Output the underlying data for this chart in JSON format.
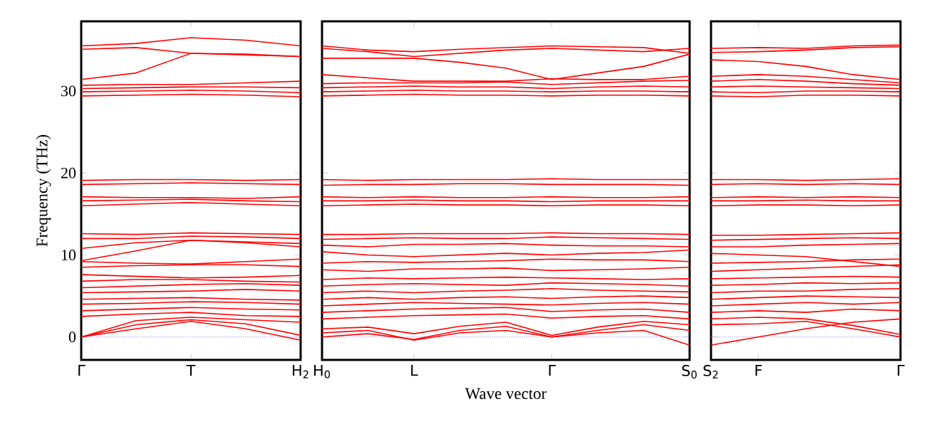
{
  "chart_data": [
    {
      "type": "line",
      "ylabel": "Frequency (THz)",
      "ylim": [
        -2.8,
        38.5
      ],
      "yticks": [
        0,
        10,
        20,
        30
      ],
      "categories": [
        "Γ",
        null,
        "T",
        null,
        "H$_{2}$"
      ],
      "ref_lines": [
        {
          "axis": "y",
          "value": 0,
          "color": "#7777ff",
          "line_style": "dotted"
        }
      ],
      "series": [
        {
          "color": "#ff0000",
          "values": [
            0,
            1.0,
            1.9,
            1.0,
            -0.4
          ]
        },
        {
          "color": "#ff0000",
          "values": [
            0,
            1.5,
            2.1,
            1.6,
            0.2
          ]
        },
        {
          "color": "#ff0000",
          "values": [
            0,
            2.0,
            2.4,
            2.1,
            1.8
          ]
        },
        {
          "color": "#ff0000",
          "values": [
            2.5,
            2.8,
            3.0,
            2.6,
            2.5
          ]
        },
        {
          "color": "#ff0000",
          "values": [
            3.2,
            3.4,
            3.6,
            3.4,
            3.3
          ]
        },
        {
          "color": "#ff0000",
          "values": [
            4.0,
            4.1,
            4.3,
            4.2,
            4.0
          ]
        },
        {
          "color": "#ff0000",
          "values": [
            4.6,
            4.7,
            4.8,
            4.6,
            4.5
          ]
        },
        {
          "color": "#ff0000",
          "values": [
            5.4,
            5.5,
            5.6,
            5.8,
            5.6
          ]
        },
        {
          "color": "#ff0000",
          "values": [
            6.0,
            6.2,
            6.4,
            6.5,
            6.3
          ]
        },
        {
          "color": "#ff0000",
          "values": [
            6.8,
            7.0,
            7.0,
            6.8,
            6.7
          ]
        },
        {
          "color": "#ff0000",
          "values": [
            7.6,
            7.4,
            7.2,
            7.3,
            7.5
          ]
        },
        {
          "color": "#ff0000",
          "values": [
            8.5,
            8.7,
            8.8,
            8.8,
            8.6
          ]
        },
        {
          "color": "#ff0000",
          "values": [
            9.2,
            9.0,
            8.9,
            9.2,
            9.5
          ]
        },
        {
          "color": "#ff0000",
          "values": [
            9.3,
            10.5,
            11.8,
            11.5,
            11.0
          ]
        },
        {
          "color": "#ff0000",
          "values": [
            10.8,
            11.5,
            11.8,
            11.6,
            11.4
          ]
        },
        {
          "color": "#ff0000",
          "values": [
            12.0,
            12.0,
            12.3,
            12.2,
            12.0
          ]
        },
        {
          "color": "#ff0000",
          "values": [
            12.6,
            12.5,
            12.7,
            12.6,
            12.5
          ]
        },
        {
          "color": "#ff0000",
          "values": [
            16.0,
            16.2,
            16.4,
            16.2,
            16.0
          ]
        },
        {
          "color": "#ff0000",
          "values": [
            16.6,
            16.7,
            16.8,
            16.6,
            16.5
          ]
        },
        {
          "color": "#ff0000",
          "values": [
            17.1,
            17.0,
            17.0,
            16.9,
            17.1
          ]
        },
        {
          "color": "#ff0000",
          "values": [
            18.6,
            18.7,
            18.8,
            18.7,
            18.6
          ]
        },
        {
          "color": "#ff0000",
          "values": [
            19.1,
            19.2,
            19.2,
            19.1,
            19.2
          ]
        },
        {
          "color": "#ff0000",
          "values": [
            29.4,
            29.5,
            29.6,
            29.5,
            29.3
          ]
        },
        {
          "color": "#ff0000",
          "values": [
            29.9,
            30.0,
            30.1,
            30.0,
            29.8
          ]
        },
        {
          "color": "#ff0000",
          "values": [
            30.3,
            30.4,
            30.5,
            30.5,
            30.4
          ]
        },
        {
          "color": "#ff0000",
          "values": [
            30.7,
            30.8,
            30.8,
            31.0,
            31.2
          ]
        },
        {
          "color": "#ff0000",
          "values": [
            31.4,
            32.2,
            34.6,
            34.5,
            34.2
          ]
        },
        {
          "color": "#ff0000",
          "values": [
            35.1,
            35.3,
            34.6,
            34.4,
            34.2
          ]
        },
        {
          "color": "#ff0000",
          "values": [
            35.5,
            35.8,
            36.5,
            36.2,
            35.5
          ]
        }
      ]
    },
    {
      "type": "line",
      "xlabel": "Wave vector",
      "ylim": [
        -2.8,
        38.5
      ],
      "yticks": [
        0,
        10,
        20,
        30
      ],
      "tick_labels": "x",
      "categories": [
        "H$_{0}$",
        null,
        "L",
        null,
        null,
        "Γ",
        null,
        null,
        "S$_{0}$"
      ],
      "ref_lines": [
        {
          "axis": "y",
          "value": 0,
          "color": "#7777ff",
          "line_style": "dotted"
        }
      ],
      "series": [
        {
          "color": "#ff0000",
          "values": [
            0.5,
            0.8,
            -0.4,
            0.5,
            0.8,
            0,
            0.5,
            0.8,
            -1.0
          ]
        },
        {
          "color": "#ff0000",
          "values": [
            0.0,
            0.4,
            -0.3,
            0.8,
            1.3,
            0,
            0.8,
            1.5,
            0.8
          ]
        },
        {
          "color": "#ff0000",
          "values": [
            1.0,
            1.2,
            0.4,
            1.3,
            1.8,
            0.2,
            1.2,
            1.9,
            1.5
          ]
        },
        {
          "color": "#ff0000",
          "values": [
            2.2,
            2.4,
            2.6,
            2.7,
            2.8,
            2.3,
            2.5,
            2.6,
            2.2
          ]
        },
        {
          "color": "#ff0000",
          "values": [
            3.0,
            3.2,
            3.4,
            3.5,
            3.6,
            3.1,
            3.3,
            3.4,
            3.0
          ]
        },
        {
          "color": "#ff0000",
          "values": [
            3.8,
            4.0,
            4.2,
            4.1,
            4.0,
            3.9,
            4.1,
            4.2,
            4.0
          ]
        },
        {
          "color": "#ff0000",
          "values": [
            4.6,
            4.8,
            4.6,
            4.8,
            4.9,
            4.7,
            4.9,
            5.0,
            4.8
          ]
        },
        {
          "color": "#ff0000",
          "values": [
            5.4,
            5.6,
            5.4,
            5.6,
            5.7,
            5.9,
            5.7,
            5.6,
            5.5
          ]
        },
        {
          "color": "#ff0000",
          "values": [
            6.2,
            6.4,
            6.5,
            6.4,
            6.3,
            6.6,
            6.5,
            6.4,
            6.2
          ]
        },
        {
          "color": "#ff0000",
          "values": [
            7.0,
            7.2,
            7.1,
            7.2,
            7.3,
            7.2,
            7.1,
            7.0,
            7.1
          ]
        },
        {
          "color": "#ff0000",
          "values": [
            8.2,
            8.0,
            8.3,
            8.3,
            8.4,
            8.1,
            8.2,
            8.3,
            8.5
          ]
        },
        {
          "color": "#ff0000",
          "values": [
            9.0,
            9.2,
            9.1,
            9.2,
            9.3,
            9.5,
            9.4,
            9.4,
            9.2
          ]
        },
        {
          "color": "#ff0000",
          "values": [
            10.4,
            10.0,
            9.8,
            10.0,
            10.2,
            10.0,
            10.2,
            10.3,
            10.6
          ]
        },
        {
          "color": "#ff0000",
          "values": [
            11.2,
            11.0,
            11.3,
            11.3,
            11.4,
            11.2,
            11.1,
            11.1,
            11.0
          ]
        },
        {
          "color": "#ff0000",
          "values": [
            11.9,
            12.0,
            12.1,
            12.0,
            12.0,
            12.2,
            12.1,
            12.0,
            11.9
          ]
        },
        {
          "color": "#ff0000",
          "values": [
            12.5,
            12.5,
            12.6,
            12.6,
            12.6,
            12.7,
            12.6,
            12.6,
            12.5
          ]
        },
        {
          "color": "#ff0000",
          "values": [
            16.0,
            16.1,
            16.2,
            16.1,
            16.1,
            16.0,
            16.1,
            16.1,
            16.0
          ]
        },
        {
          "color": "#ff0000",
          "values": [
            16.6,
            16.6,
            16.7,
            16.6,
            16.6,
            16.5,
            16.6,
            16.6,
            16.6
          ]
        },
        {
          "color": "#ff0000",
          "values": [
            17.1,
            17.0,
            17.1,
            17.0,
            17.0,
            17.1,
            17.0,
            17.0,
            17.1
          ]
        },
        {
          "color": "#ff0000",
          "values": [
            18.5,
            18.6,
            18.6,
            18.7,
            18.7,
            18.6,
            18.6,
            18.6,
            18.5
          ]
        },
        {
          "color": "#ff0000",
          "values": [
            19.2,
            19.1,
            19.2,
            19.2,
            19.2,
            19.3,
            19.2,
            19.2,
            19.2
          ]
        },
        {
          "color": "#ff0000",
          "values": [
            29.4,
            29.5,
            29.6,
            29.5,
            29.5,
            29.4,
            29.5,
            29.5,
            29.4
          ]
        },
        {
          "color": "#ff0000",
          "values": [
            29.9,
            30.0,
            30.1,
            30.0,
            30.0,
            29.9,
            30.0,
            30.0,
            29.9
          ]
        },
        {
          "color": "#ff0000",
          "values": [
            30.4,
            30.5,
            30.6,
            30.5,
            30.5,
            30.3,
            30.5,
            30.6,
            30.5
          ]
        },
        {
          "color": "#ff0000",
          "values": [
            30.9,
            31.0,
            31.0,
            31.0,
            31.1,
            30.8,
            31.0,
            31.2,
            31.3
          ]
        },
        {
          "color": "#ff0000",
          "values": [
            32.0,
            31.6,
            31.2,
            31.2,
            31.2,
            31.5,
            31.4,
            31.4,
            31.8
          ]
        },
        {
          "color": "#ff0000",
          "values": [
            34.0,
            34.0,
            34.0,
            33.5,
            32.8,
            31.4,
            32.2,
            33.0,
            34.5
          ]
        },
        {
          "color": "#ff0000",
          "values": [
            35.5,
            35.0,
            34.8,
            35.1,
            35.3,
            35.5,
            35.4,
            35.3,
            34.6
          ]
        },
        {
          "color": "#ff0000",
          "values": [
            35.2,
            34.8,
            34.2,
            34.6,
            35.0,
            35.2,
            35.0,
            34.8,
            35.2
          ]
        }
      ]
    },
    {
      "type": "line",
      "ylim": [
        -2.8,
        38.5
      ],
      "yticks": [
        0,
        10,
        20,
        30
      ],
      "tick_labels": "x",
      "categories": [
        "S$_{2}$",
        "F",
        null,
        null,
        "Γ"
      ],
      "ref_lines": [
        {
          "axis": "y",
          "value": 0,
          "color": "#7777ff",
          "line_style": "dotted"
        }
      ],
      "series": [
        {
          "color": "#ff0000",
          "values": [
            -1.0,
            0,
            1.0,
            1.8,
            2.2
          ]
        },
        {
          "color": "#ff0000",
          "values": [
            1.5,
            1.6,
            1.9,
            1.0,
            0
          ]
        },
        {
          "color": "#ff0000",
          "values": [
            2.2,
            2.4,
            2.2,
            1.4,
            0.3
          ]
        },
        {
          "color": "#ff0000",
          "values": [
            3.0,
            3.2,
            3.0,
            3.4,
            3.2
          ]
        },
        {
          "color": "#ff0000",
          "values": [
            3.8,
            4.0,
            4.2,
            4.0,
            4.2
          ]
        },
        {
          "color": "#ff0000",
          "values": [
            4.6,
            4.8,
            5.0,
            4.9,
            4.8
          ]
        },
        {
          "color": "#ff0000",
          "values": [
            5.4,
            5.6,
            5.6,
            5.8,
            5.9
          ]
        },
        {
          "color": "#ff0000",
          "values": [
            6.3,
            6.4,
            6.6,
            6.5,
            6.6
          ]
        },
        {
          "color": "#ff0000",
          "values": [
            7.1,
            7.2,
            7.3,
            7.4,
            7.3
          ]
        },
        {
          "color": "#ff0000",
          "values": [
            8.0,
            8.2,
            8.4,
            8.6,
            8.8
          ]
        },
        {
          "color": "#ff0000",
          "values": [
            9.0,
            9.1,
            9.2,
            9.4,
            9.5
          ]
        },
        {
          "color": "#ff0000",
          "values": [
            10.2,
            10.0,
            9.8,
            9.2,
            8.6
          ]
        },
        {
          "color": "#ff0000",
          "values": [
            11.0,
            11.0,
            11.2,
            11.3,
            11.4
          ]
        },
        {
          "color": "#ff0000",
          "values": [
            11.8,
            11.9,
            12.0,
            12.1,
            12.0
          ]
        },
        {
          "color": "#ff0000",
          "values": [
            12.4,
            12.4,
            12.5,
            12.6,
            12.7
          ]
        },
        {
          "color": "#ff0000",
          "values": [
            16.0,
            16.1,
            16.1,
            16.0,
            16.1
          ]
        },
        {
          "color": "#ff0000",
          "values": [
            16.6,
            16.6,
            16.7,
            16.6,
            16.6
          ]
        },
        {
          "color": "#ff0000",
          "values": [
            17.0,
            17.1,
            17.0,
            17.1,
            17.0
          ]
        },
        {
          "color": "#ff0000",
          "values": [
            18.6,
            18.7,
            18.6,
            18.7,
            18.6
          ]
        },
        {
          "color": "#ff0000",
          "values": [
            19.2,
            19.2,
            19.1,
            19.2,
            19.3
          ]
        },
        {
          "color": "#ff0000",
          "values": [
            29.4,
            29.3,
            29.5,
            29.5,
            29.4
          ]
        },
        {
          "color": "#ff0000",
          "values": [
            29.9,
            29.8,
            30.0,
            30.0,
            29.9
          ]
        },
        {
          "color": "#ff0000",
          "values": [
            30.5,
            30.6,
            30.5,
            30.4,
            30.3
          ]
        },
        {
          "color": "#ff0000",
          "values": [
            31.2,
            31.4,
            31.2,
            30.9,
            30.7
          ]
        },
        {
          "color": "#ff0000",
          "values": [
            31.8,
            32.0,
            31.8,
            31.4,
            31.0
          ]
        },
        {
          "color": "#ff0000",
          "values": [
            33.8,
            33.6,
            33.0,
            32.0,
            31.4
          ]
        },
        {
          "color": "#ff0000",
          "values": [
            34.7,
            34.8,
            35.0,
            35.3,
            35.4
          ]
        },
        {
          "color": "#ff0000",
          "values": [
            35.2,
            35.3,
            35.2,
            35.5,
            35.6
          ]
        }
      ]
    }
  ]
}
